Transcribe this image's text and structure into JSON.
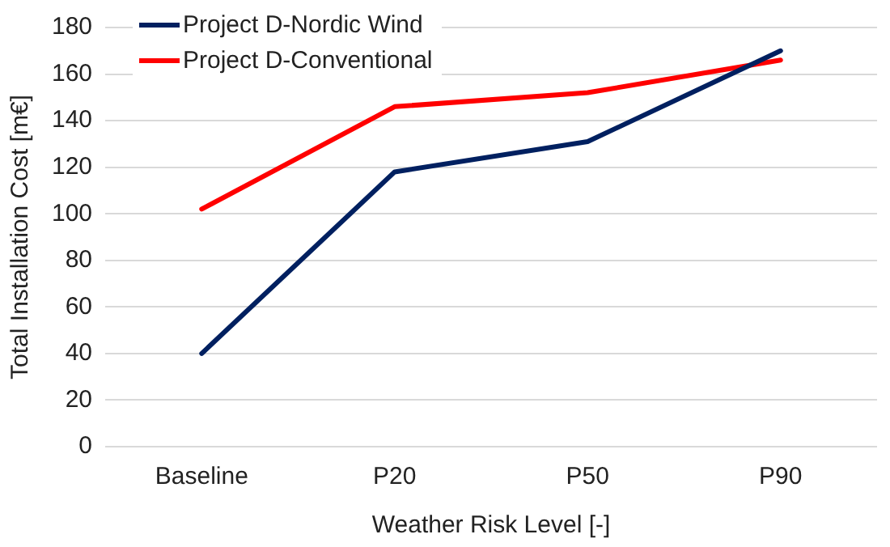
{
  "chart_data": {
    "type": "line",
    "xlabel": "Weather Risk Level [-]",
    "ylabel": "Total Installation Cost [m€]",
    "categories": [
      "Baseline",
      "P20",
      "P50",
      "P90"
    ],
    "series": [
      {
        "name": "Project D-Nordic Wind",
        "color": "#002060",
        "values": [
          40,
          118,
          131,
          170
        ]
      },
      {
        "name": "Project D-Conventional",
        "color": "#ff0000",
        "values": [
          102,
          146,
          152,
          166
        ]
      }
    ],
    "ylim": [
      0,
      180
    ],
    "yticks": [
      0,
      20,
      40,
      60,
      80,
      100,
      120,
      140,
      160,
      180
    ],
    "grid": "y",
    "legend": "top left",
    "marker": "none",
    "line_style": "solid"
  }
}
